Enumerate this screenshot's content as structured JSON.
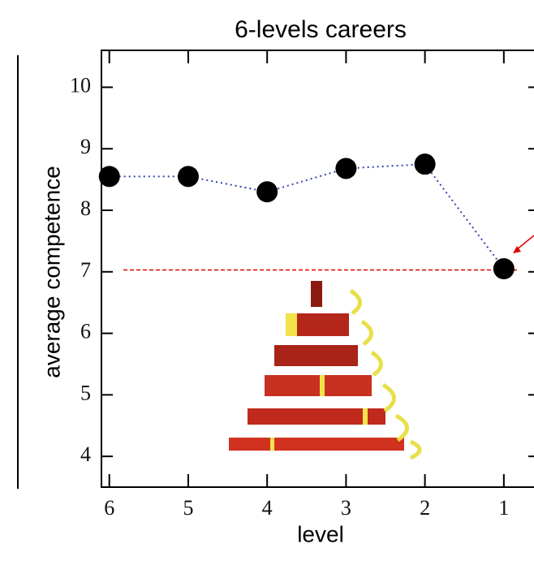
{
  "chart_data": {
    "type": "line",
    "title": "6-levels careers",
    "x_label": "level",
    "y_label": "average competence",
    "x": [
      6,
      5,
      4,
      3,
      2,
      1
    ],
    "values": [
      8.55,
      8.55,
      8.3,
      8.68,
      8.75,
      7.05
    ],
    "line_color": "#3344aa",
    "marker_color": "#000000",
    "xlim": [
      6.1,
      0.7
    ],
    "xticks": [
      6,
      5,
      4,
      3,
      2,
      1
    ],
    "ylim": [
      3.5,
      10.6
    ],
    "yticks": [
      4,
      5,
      6,
      7,
      8,
      9,
      10
    ],
    "reference_line": {
      "value": 7.03,
      "color": "#e00000"
    }
  }
}
